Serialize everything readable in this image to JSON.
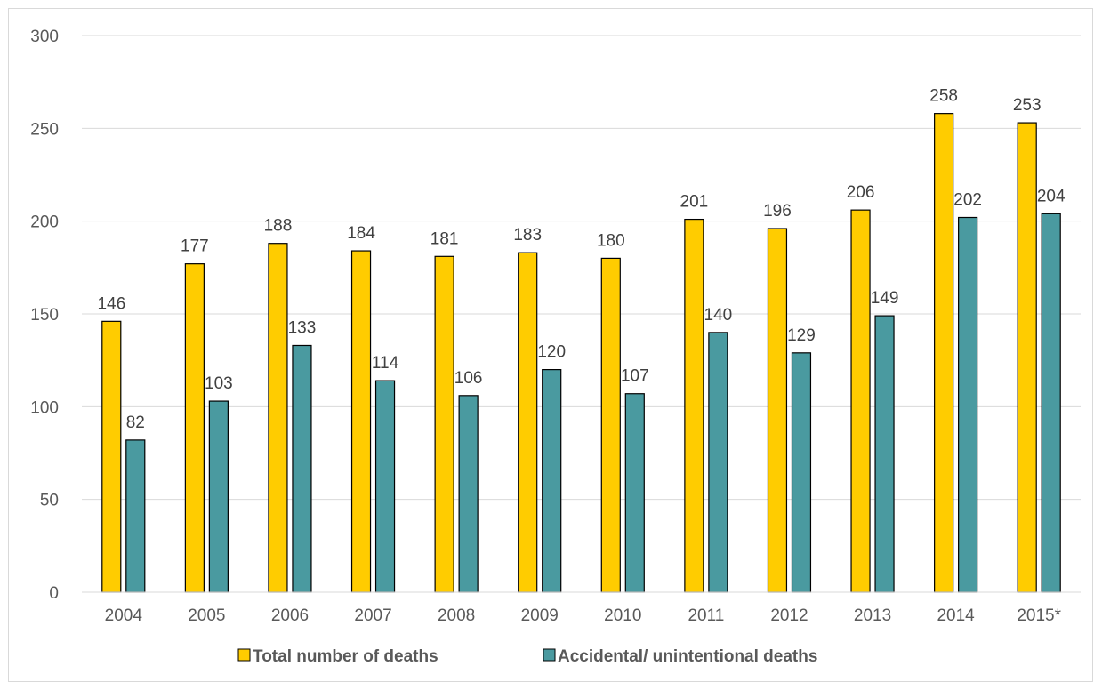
{
  "chart_data": {
    "type": "bar",
    "categories": [
      "2004",
      "2005",
      "2006",
      "2007",
      "2008",
      "2009",
      "2010",
      "2011",
      "2012",
      "2013",
      "2014",
      "2015*"
    ],
    "series": [
      {
        "name": "Total number of deaths",
        "color": "#FFCC00",
        "values": [
          146,
          177,
          188,
          184,
          181,
          183,
          180,
          201,
          196,
          206,
          258,
          253
        ]
      },
      {
        "name": "Accidental/ unintentional deaths",
        "color": "#4A9AA0",
        "values": [
          82,
          103,
          133,
          114,
          106,
          120,
          107,
          140,
          129,
          149,
          202,
          204
        ]
      }
    ],
    "ylim": [
      0,
      300
    ],
    "yticks": [
      0,
      50,
      100,
      150,
      200,
      250,
      300
    ],
    "grid": true,
    "legend_position": "bottom",
    "data_labels": true,
    "title": "",
    "xlabel": "",
    "ylabel": ""
  }
}
